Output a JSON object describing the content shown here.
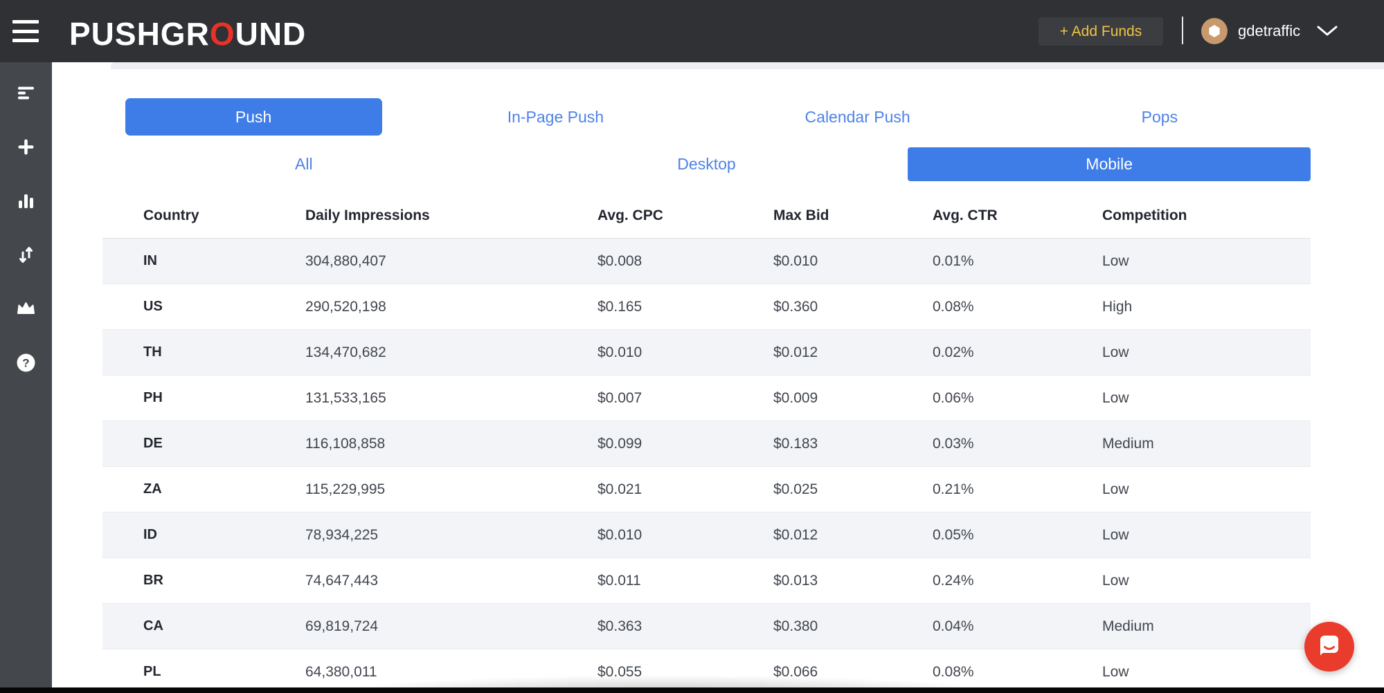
{
  "header": {
    "logo": {
      "part1": "PUSHGR",
      "accent": "O",
      "part3": "UND"
    },
    "add_funds_label": "+ Add Funds",
    "username": "gdetraffic"
  },
  "sidebar": {
    "items": [
      {
        "icon": "campaigns-icon"
      },
      {
        "icon": "create-campaign-icon"
      },
      {
        "icon": "statistics-icon"
      },
      {
        "icon": "traffic-volumes-icon"
      },
      {
        "icon": "premium-icon"
      },
      {
        "icon": "help-icon"
      }
    ]
  },
  "tabs": {
    "format": [
      {
        "label": "Push",
        "active": true
      },
      {
        "label": "In-Page Push",
        "active": false
      },
      {
        "label": "Calendar Push",
        "active": false
      },
      {
        "label": "Pops",
        "active": false
      }
    ],
    "device": [
      {
        "label": "All",
        "active": false
      },
      {
        "label": "Desktop",
        "active": false
      },
      {
        "label": "Mobile",
        "active": true
      }
    ]
  },
  "table": {
    "columns": [
      "Country",
      "Daily Impressions",
      "Avg. CPC",
      "Max Bid",
      "Avg. CTR",
      "Competition"
    ],
    "rows": [
      [
        "IN",
        "304,880,407",
        "$0.008",
        "$0.010",
        "0.01%",
        "Low"
      ],
      [
        "US",
        "290,520,198",
        "$0.165",
        "$0.360",
        "0.08%",
        "High"
      ],
      [
        "TH",
        "134,470,682",
        "$0.010",
        "$0.012",
        "0.02%",
        "Low"
      ],
      [
        "PH",
        "131,533,165",
        "$0.007",
        "$0.009",
        "0.06%",
        "Low"
      ],
      [
        "DE",
        "116,108,858",
        "$0.099",
        "$0.183",
        "0.03%",
        "Medium"
      ],
      [
        "ZA",
        "115,229,995",
        "$0.021",
        "$0.025",
        "0.21%",
        "Low"
      ],
      [
        "ID",
        "78,934,225",
        "$0.010",
        "$0.012",
        "0.05%",
        "Low"
      ],
      [
        "BR",
        "74,647,443",
        "$0.011",
        "$0.013",
        "0.24%",
        "Low"
      ],
      [
        "CA",
        "69,819,724",
        "$0.363",
        "$0.380",
        "0.04%",
        "Medium"
      ],
      [
        "PL",
        "64,380,011",
        "$0.055",
        "$0.066",
        "0.08%",
        "Low"
      ]
    ]
  },
  "colors": {
    "accent_blue": "#3e7ce8",
    "logo_red": "#e83229",
    "add_funds_yellow": "#f0c544",
    "chat_red": "#ea3c2c",
    "topbar_dark": "#2f3134",
    "sidebar_dark": "#44474c",
    "row_alt": "#f2f4f7"
  }
}
